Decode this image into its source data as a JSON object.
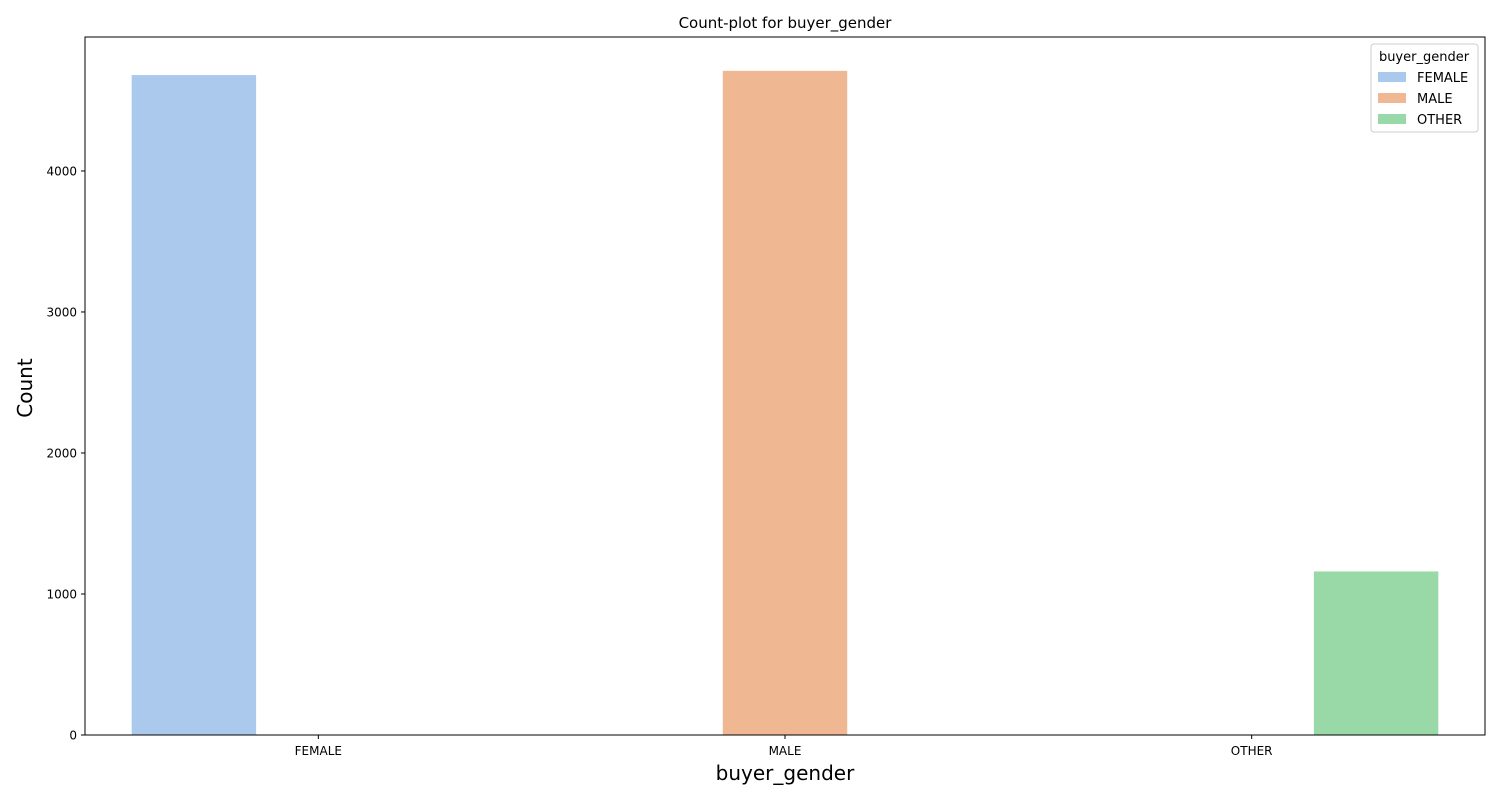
{
  "chart_data": {
    "type": "bar",
    "title": "Count-plot for buyer_gender",
    "xlabel": "buyer_gender",
    "ylabel": "Count",
    "categories": [
      "FEMALE",
      "MALE",
      "OTHER"
    ],
    "series": [
      {
        "name": "FEMALE",
        "values": [
          4680,
          null,
          null
        ],
        "color": "#abc9ed"
      },
      {
        "name": "MALE",
        "values": [
          null,
          4710,
          null
        ],
        "color": "#f0b892"
      },
      {
        "name": "OTHER",
        "values": [
          null,
          null,
          1160
        ],
        "color": "#99d9a8"
      }
    ],
    "ylim": [
      0,
      4950
    ],
    "yticks": [
      0,
      1000,
      2000,
      3000,
      4000
    ],
    "ytick_labels": [
      "0",
      "1000",
      "2000",
      "3000",
      "4000"
    ],
    "grid": false,
    "legend": {
      "title": "buyer_gender",
      "placement": "top-right",
      "entries": [
        "FEMALE",
        "MALE",
        "OTHER"
      ]
    }
  }
}
